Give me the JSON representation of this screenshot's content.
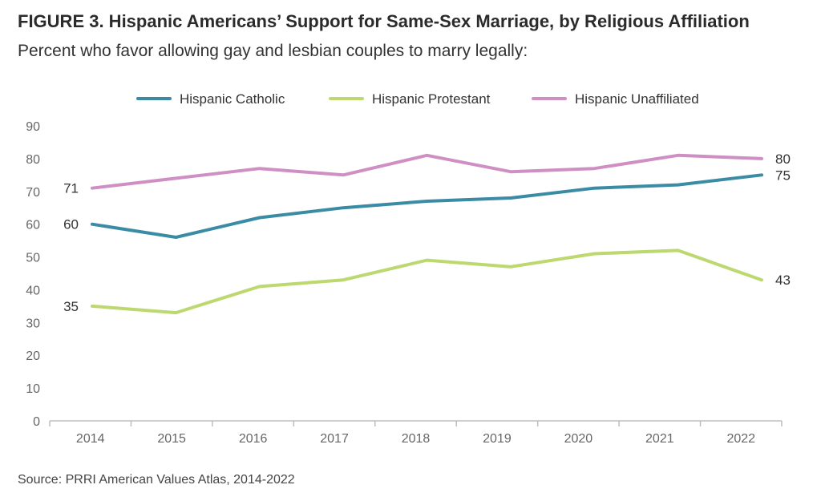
{
  "figure": {
    "title": "FIGURE 3.  Hispanic Americans’ Support for Same-Sex Marriage, by Religious Affiliation",
    "subtitle": "Percent who favor allowing gay and lesbian couples to marry legally:",
    "source": "Source: PRRI American Values Atlas, 2014-2022"
  },
  "chart_data": {
    "type": "line",
    "x": [
      "2014",
      "2015",
      "2016",
      "2017",
      "2018",
      "2019",
      "2020",
      "2021",
      "2022"
    ],
    "ylim": [
      0,
      90
    ],
    "yticks": [
      0,
      10,
      20,
      30,
      40,
      50,
      60,
      70,
      80,
      90
    ],
    "grid": false,
    "legend_position": "top",
    "series": [
      {
        "name": "Hispanic Catholic",
        "color": "#3a8ca5",
        "values": [
          60,
          56,
          62,
          65,
          67,
          68,
          71,
          72,
          75
        ],
        "start_label": "60",
        "end_label": "75"
      },
      {
        "name": "Hispanic Protestant",
        "color": "#bcd86e",
        "values": [
          35,
          33,
          41,
          43,
          49,
          47,
          51,
          52,
          43
        ],
        "start_label": "35",
        "end_label": "43"
      },
      {
        "name": "Hispanic Unaffiliated",
        "color": "#cf8fc4",
        "values": [
          71,
          74,
          77,
          75,
          81,
          76,
          77,
          81,
          80
        ],
        "start_label": "71",
        "end_label": "80"
      }
    ]
  }
}
